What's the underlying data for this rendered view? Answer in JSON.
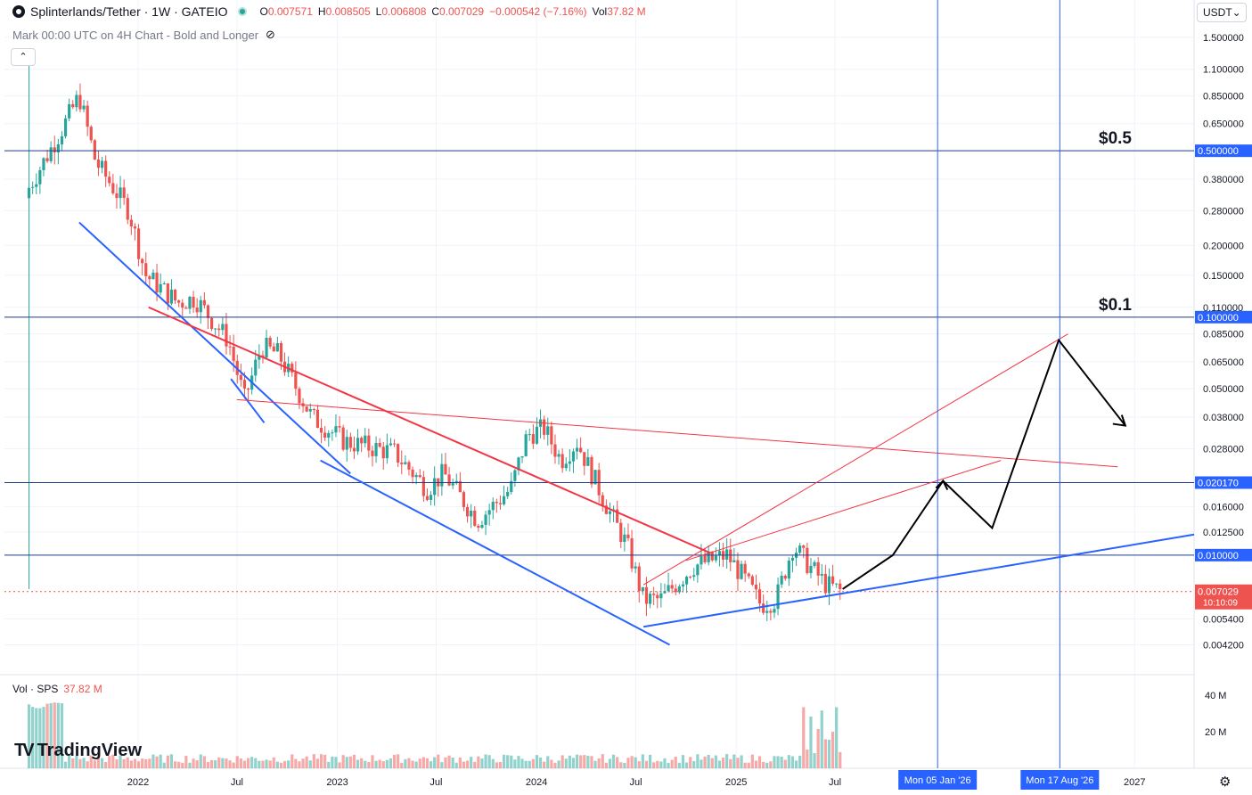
{
  "header": {
    "symbol_title": "Splinterlands/Tether · 1W · GATEIO",
    "ohlc": {
      "o_label": "O",
      "o": "0.007571",
      "h_label": "H",
      "h": "0.008505",
      "l_label": "L",
      "l": "0.006808",
      "c_label": "C",
      "c": "0.007029",
      "change": "−0.000542 (−7.16%)",
      "vol_label": "Vol",
      "vol": "37.82 M"
    },
    "subtitle": "Mark 00:00 UTC on 4H Chart - Bold and Longer",
    "collapse_glyph": "⌃"
  },
  "currency_selector": {
    "label": "USDT",
    "caret": "⌄"
  },
  "volume_header": {
    "label": "Vol · SPS",
    "value": "37.82 M"
  },
  "brand": {
    "mark": "TV",
    "name": "TradingView"
  },
  "colors": {
    "up": "#26a69a",
    "down": "#ef5350",
    "line_blue": "#2962ff",
    "line_red": "#f23645",
    "grid": "#f0f3fa",
    "hline": "#1e3a8a",
    "text": "#131722"
  },
  "chart_data": {
    "type": "candlestick",
    "scale": "log",
    "yticks": [
      "1.500000",
      "1.100000",
      "0.850000",
      "0.650000",
      "0.380000",
      "0.280000",
      "0.200000",
      "0.150000",
      "0.110000",
      "0.085000",
      "0.065000",
      "0.050000",
      "0.038000",
      "0.028000",
      "0.016000",
      "0.012500",
      "0.005400",
      "0.004200"
    ],
    "highlighted_levels": [
      {
        "value": 0.5,
        "label": "0.500000",
        "annotation": "$0.5"
      },
      {
        "value": 0.1,
        "label": "0.100000",
        "annotation": "$0.1"
      },
      {
        "value": 0.02017,
        "label": "0.020170",
        "annotation": ""
      },
      {
        "value": 0.01,
        "label": "0.010000",
        "annotation": ""
      }
    ],
    "last_price": {
      "value": 0.007029,
      "label": "0.007029",
      "countdown": "10:10:09"
    },
    "xticks": [
      "2022",
      "Jul",
      "2023",
      "Jul",
      "2024",
      "Jul",
      "2025",
      "Jul",
      "2027"
    ],
    "x_markers": [
      "Mon 05 Jan '26",
      "Mon 17 Aug '26"
    ],
    "volume_ticks": [
      "40 M",
      "20 M"
    ],
    "path_points": [
      {
        "date": "2021-06",
        "price": 0.35
      },
      {
        "date": "2021-08",
        "price": 0.62
      },
      {
        "date": "2021-09",
        "price": 0.85
      },
      {
        "date": "2021-10",
        "price": 0.45
      },
      {
        "date": "2021-12",
        "price": 0.28
      },
      {
        "date": "2022-01",
        "price": 0.15
      },
      {
        "date": "2022-03",
        "price": 0.115
      },
      {
        "date": "2022-04",
        "price": 0.12
      },
      {
        "date": "2022-06",
        "price": 0.08
      },
      {
        "date": "2022-07",
        "price": 0.045
      },
      {
        "date": "2022-08",
        "price": 0.075
      },
      {
        "date": "2022-09",
        "price": 0.07
      },
      {
        "date": "2022-11",
        "price": 0.038
      },
      {
        "date": "2023-01",
        "price": 0.03
      },
      {
        "date": "2023-04",
        "price": 0.027
      },
      {
        "date": "2023-06",
        "price": 0.019
      },
      {
        "date": "2023-07",
        "price": 0.022
      },
      {
        "date": "2023-09",
        "price": 0.014
      },
      {
        "date": "2023-11",
        "price": 0.019
      },
      {
        "date": "2023-12",
        "price": 0.032
      },
      {
        "date": "2024-01",
        "price": 0.034
      },
      {
        "date": "2024-02",
        "price": 0.025
      },
      {
        "date": "2024-03",
        "price": 0.03
      },
      {
        "date": "2024-05",
        "price": 0.015
      },
      {
        "date": "2024-06",
        "price": 0.011
      },
      {
        "date": "2024-07",
        "price": 0.0065
      },
      {
        "date": "2024-08",
        "price": 0.0065
      },
      {
        "date": "2024-10",
        "price": 0.009
      },
      {
        "date": "2024-12",
        "price": 0.01
      },
      {
        "date": "2025-01",
        "price": 0.008
      },
      {
        "date": "2025-02",
        "price": 0.0062
      },
      {
        "date": "2025-03",
        "price": 0.0065
      },
      {
        "date": "2025-04",
        "price": 0.011
      },
      {
        "date": "2025-05",
        "price": 0.009
      },
      {
        "date": "2025-06",
        "price": 0.0075
      },
      {
        "date": "2025-07",
        "price": 0.007
      }
    ],
    "projection": [
      {
        "date": "2025-07",
        "price": 0.0072
      },
      {
        "date": "2025-10",
        "price": 0.01
      },
      {
        "date": "2026-01",
        "price": 0.0205
      },
      {
        "date": "2026-04",
        "price": 0.013
      },
      {
        "date": "2026-08",
        "price": 0.08
      },
      {
        "date": "2026-12",
        "price": 0.035
      }
    ]
  }
}
